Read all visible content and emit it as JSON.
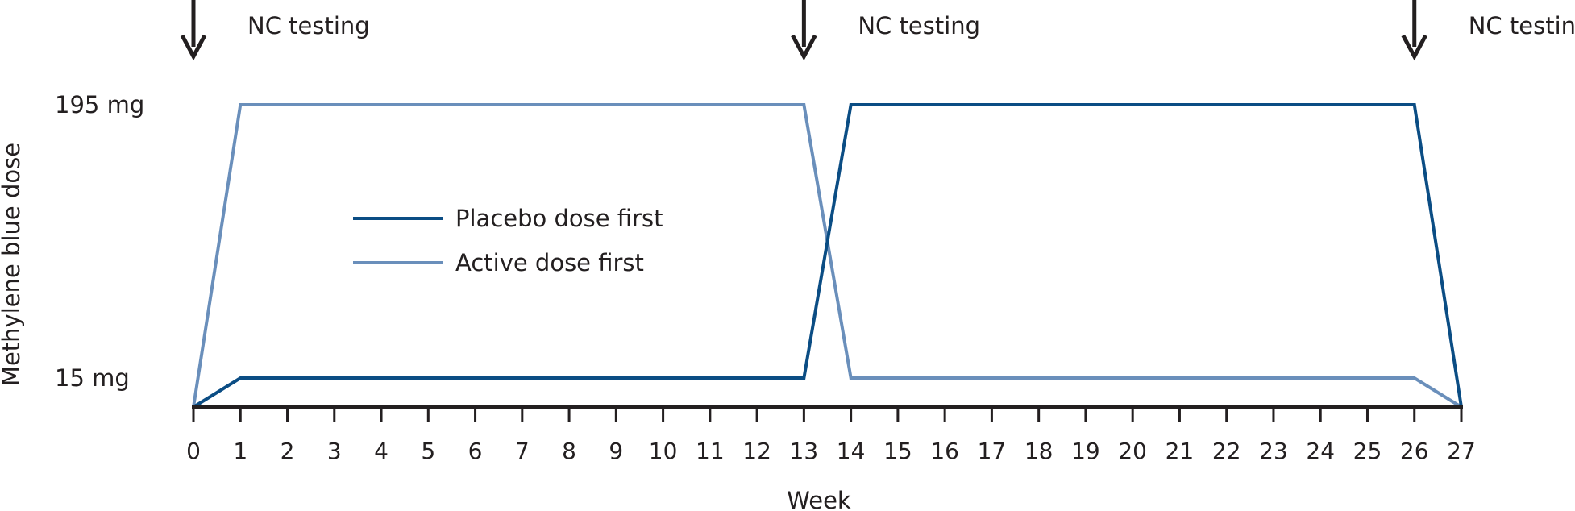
{
  "chart_data": {
    "type": "line",
    "title": "",
    "xlabel": "Week",
    "ylabel": "Methylene blue dose",
    "xlim": [
      0,
      27
    ],
    "x_ticks": [
      "0",
      "1",
      "2",
      "3",
      "4",
      "5",
      "6",
      "7",
      "8",
      "9",
      "10",
      "11",
      "12",
      "13",
      "14",
      "15",
      "16",
      "17",
      "18",
      "19",
      "20",
      "21",
      "22",
      "23",
      "24",
      "25",
      "26",
      "27"
    ],
    "y_labels": [
      {
        "label": "195 mg",
        "value": 195
      },
      {
        "label": "15 mg",
        "value": 15
      }
    ],
    "baseline_value": 0,
    "grid": false,
    "legend_position": "center-left",
    "series": [
      {
        "name": "Placebo dose first",
        "color": "#0b4d84",
        "points": [
          [
            0,
            0
          ],
          [
            1,
            15
          ],
          [
            13,
            15
          ],
          [
            14,
            195
          ],
          [
            26,
            195
          ],
          [
            27,
            0
          ]
        ]
      },
      {
        "name": "Active dose first",
        "color": "#6a8fbb",
        "points": [
          [
            0,
            0
          ],
          [
            1,
            195
          ],
          [
            13,
            195
          ],
          [
            14,
            15
          ],
          [
            26,
            15
          ],
          [
            27,
            0
          ]
        ]
      }
    ],
    "annotations": [
      {
        "x": 0,
        "label": "NC testing"
      },
      {
        "x": 13,
        "label": "NC testing"
      },
      {
        "x": 26,
        "label": "NC testing"
      }
    ]
  }
}
